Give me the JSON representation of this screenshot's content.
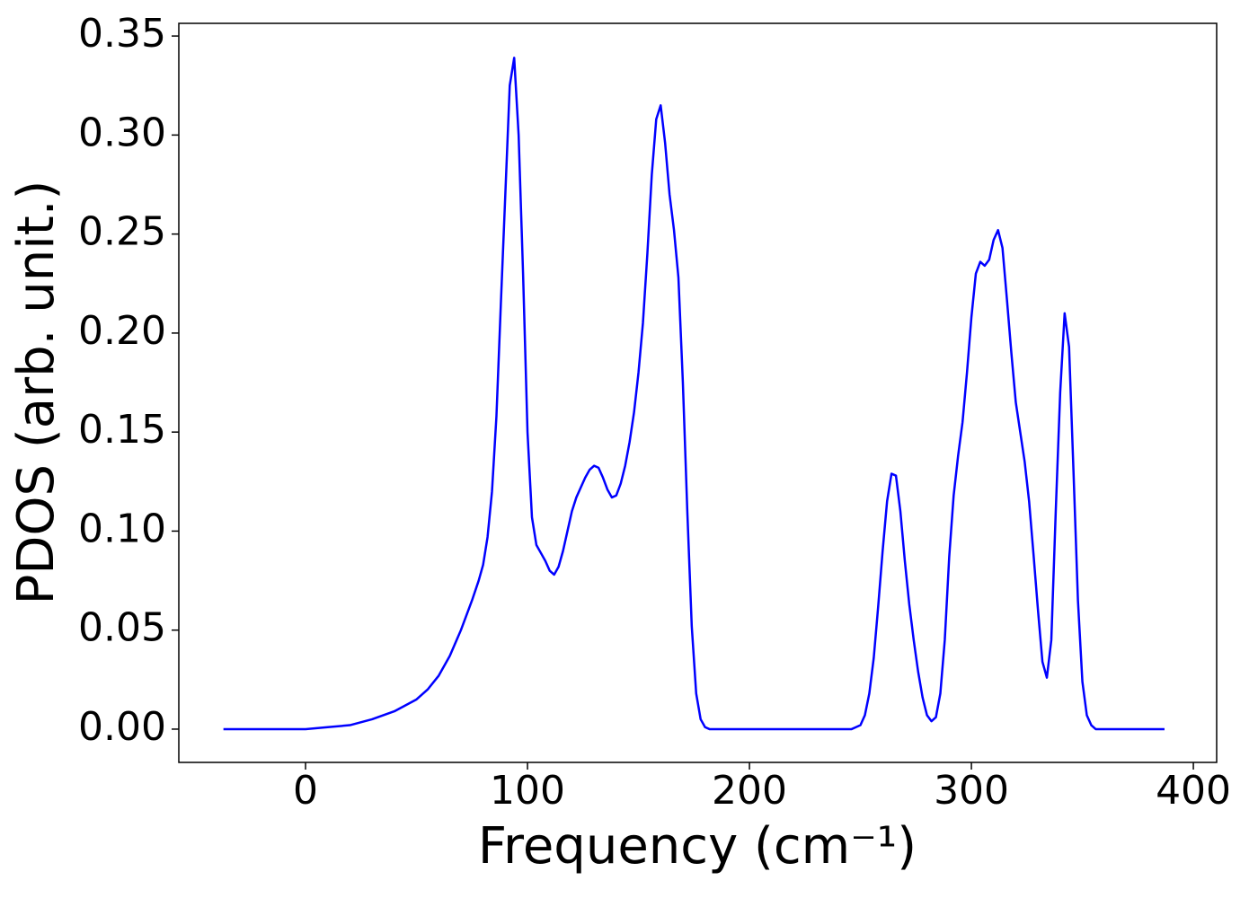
{
  "chart_data": {
    "type": "line",
    "xlabel": "Frequency (cm⁻¹)",
    "ylabel": "PDOS (arb. unit.)",
    "color": "#0000ff",
    "x": [
      -37,
      -20,
      0,
      10,
      20,
      30,
      40,
      50,
      55,
      60,
      65,
      70,
      75,
      78,
      80,
      82,
      84,
      86,
      88,
      90,
      92,
      94,
      96,
      98,
      100,
      102,
      104,
      106,
      108,
      110,
      112,
      114,
      116,
      118,
      120,
      122,
      124,
      126,
      128,
      130,
      132,
      134,
      136,
      138,
      140,
      142,
      144,
      146,
      148,
      150,
      152,
      154,
      156,
      158,
      160,
      162,
      164,
      166,
      168,
      170,
      172,
      174,
      176,
      178,
      180,
      182,
      200,
      220,
      240,
      246,
      248,
      250,
      252,
      254,
      256,
      258,
      260,
      262,
      264,
      266,
      268,
      270,
      272,
      274,
      276,
      278,
      280,
      282,
      284,
      286,
      288,
      290,
      292,
      294,
      296,
      298,
      300,
      302,
      304,
      306,
      308,
      310,
      312,
      314,
      316,
      318,
      320,
      322,
      324,
      326,
      328,
      330,
      332,
      334,
      336,
      338,
      340,
      342,
      344,
      346,
      348,
      350,
      352,
      354,
      356,
      370,
      387
    ],
    "values": [
      0,
      0,
      0,
      0.001,
      0.002,
      0.005,
      0.009,
      0.015,
      0.02,
      0.027,
      0.037,
      0.05,
      0.065,
      0.075,
      0.083,
      0.097,
      0.12,
      0.158,
      0.215,
      0.27,
      0.325,
      0.339,
      0.3,
      0.23,
      0.15,
      0.107,
      0.093,
      0.089,
      0.085,
      0.08,
      0.078,
      0.082,
      0.09,
      0.1,
      0.11,
      0.117,
      0.122,
      0.127,
      0.131,
      0.133,
      0.132,
      0.127,
      0.121,
      0.117,
      0.118,
      0.124,
      0.133,
      0.145,
      0.16,
      0.18,
      0.205,
      0.24,
      0.28,
      0.308,
      0.315,
      0.296,
      0.27,
      0.252,
      0.228,
      0.175,
      0.11,
      0.052,
      0.018,
      0.005,
      0.001,
      0,
      0,
      0,
      0,
      0,
      0.001,
      0.002,
      0.007,
      0.018,
      0.036,
      0.062,
      0.09,
      0.115,
      0.129,
      0.128,
      0.11,
      0.085,
      0.063,
      0.045,
      0.029,
      0.016,
      0.007,
      0.004,
      0.006,
      0.018,
      0.045,
      0.087,
      0.118,
      0.138,
      0.155,
      0.18,
      0.208,
      0.23,
      0.236,
      0.234,
      0.237,
      0.247,
      0.252,
      0.243,
      0.217,
      0.19,
      0.165,
      0.15,
      0.135,
      0.115,
      0.088,
      0.06,
      0.034,
      0.026,
      0.045,
      0.11,
      0.17,
      0.21,
      0.193,
      0.13,
      0.065,
      0.024,
      0.007,
      0.002,
      0,
      0,
      0
    ],
    "xlim": [
      -57.1,
      410.5
    ],
    "xticks": [
      0,
      100,
      200,
      300,
      400
    ],
    "ylim": [
      -0.0168,
      0.3564
    ],
    "yticks": [
      {
        "value": 0,
        "label": "0.00"
      },
      0.05,
      {
        "value": 0.1,
        "label": "0.10"
      },
      0.15,
      {
        "value": 0.2,
        "label": "0.20"
      },
      0.25,
      {
        "value": 0.3,
        "label": "0.30"
      },
      0.35
    ],
    "grid": false
  }
}
